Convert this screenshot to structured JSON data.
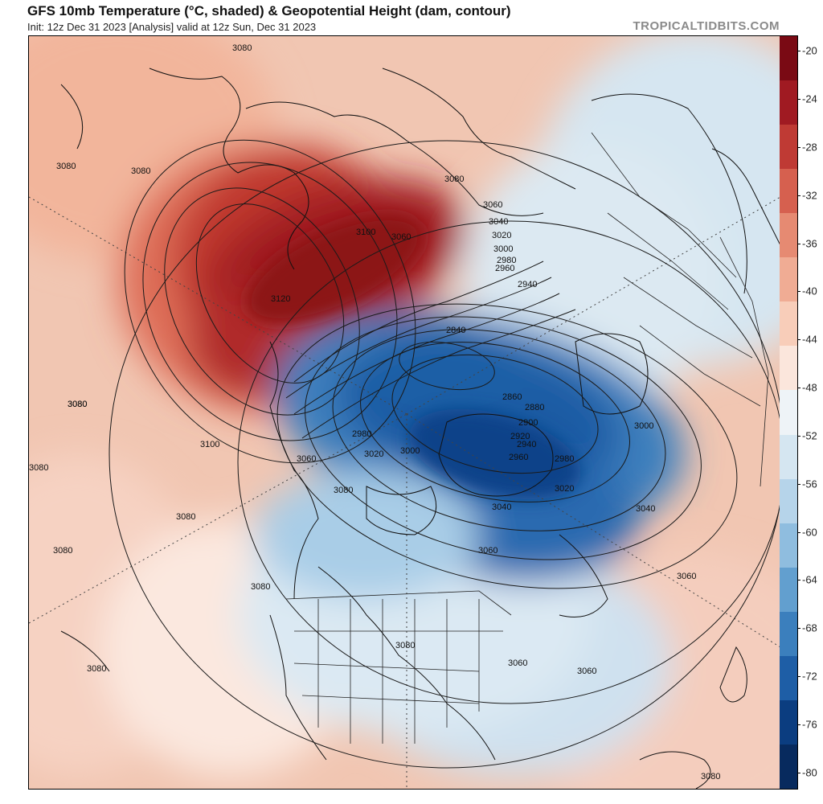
{
  "header": {
    "title": "GFS 10mb Temperature (°C, shaded) & Geopotential Height (dam, contour)",
    "subtitle": "Init: 12z Dec 31 2023   [Analysis]   valid at 12z Sun, Dec 31 2023",
    "credit": "TROPICALTIDBITS.COM"
  },
  "colorbar": {
    "labels": [
      "-20",
      "-24",
      "-28",
      "-32",
      "-36",
      "-40",
      "-44",
      "-48",
      "-52",
      "-56",
      "-60",
      "-64",
      "-68",
      "-72",
      "-76",
      "-80"
    ],
    "colors": [
      "#7a0a14",
      "#a01a22",
      "#bf3a34",
      "#d6604f",
      "#e68a72",
      "#f0ac94",
      "#f8cdb9",
      "#fbe6dc",
      "#eef3f7",
      "#d5e6f1",
      "#b6d4ea",
      "#8fbddf",
      "#629fcf",
      "#3b7fbd",
      "#1e5ea6",
      "#0b3d80",
      "#072a5e"
    ]
  },
  "map": {
    "contour_labels": [
      "3080",
      "3080",
      "3080",
      "3080",
      "3080",
      "3060",
      "3040",
      "3020",
      "3000",
      "2980",
      "2960",
      "2940",
      "3100",
      "3060",
      "3120",
      "2840",
      "2860",
      "2880",
      "2900",
      "2920",
      "2940",
      "2960",
      "2980",
      "3000",
      "3020",
      "3040",
      "3080",
      "3100",
      "3060",
      "3080",
      "3080",
      "3080",
      "3080",
      "3060",
      "3060",
      "3060",
      "3060",
      "3080",
      "3040",
      "2980",
      "3020",
      "3000",
      "3080",
      "3080",
      "3080"
    ]
  }
}
